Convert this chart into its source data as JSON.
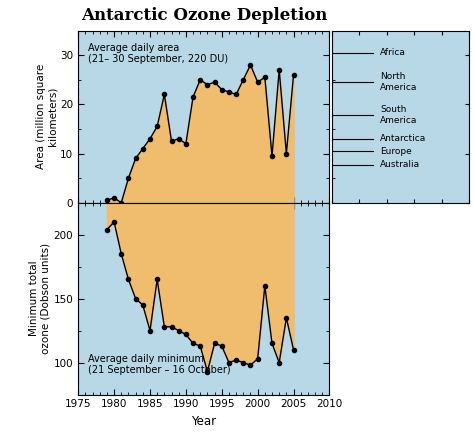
{
  "title": "Antarctic Ozone Depletion",
  "title_fontsize": 12,
  "background_color": "#B8D8E8",
  "fill_color": "#F0BC6E",
  "line_color": "#000000",
  "area_years": [
    1979,
    1980,
    1981,
    1982,
    1983,
    1984,
    1985,
    1986,
    1987,
    1988,
    1989,
    1990,
    1991,
    1992,
    1993,
    1994,
    1995,
    1996,
    1997,
    1998,
    1999,
    2000,
    2001,
    2002,
    2003,
    2004,
    2005
  ],
  "area_values": [
    0.5,
    1.0,
    0.0,
    5.0,
    9.0,
    11.0,
    13.0,
    15.5,
    22.0,
    12.5,
    13.0,
    12.0,
    21.5,
    25.0,
    24.0,
    24.5,
    23.0,
    22.5,
    22.0,
    25.0,
    28.0,
    24.5,
    25.5,
    9.5,
    27.0,
    10.0,
    26.0
  ],
  "ozone_years": [
    1979,
    1980,
    1981,
    1982,
    1983,
    1984,
    1985,
    1986,
    1987,
    1988,
    1989,
    1990,
    1991,
    1992,
    1993,
    1994,
    1995,
    1996,
    1997,
    1998,
    1999,
    2000,
    2001,
    2002,
    2003,
    2004,
    2005
  ],
  "ozone_values": [
    204,
    210,
    185,
    165,
    150,
    145,
    125,
    165,
    128,
    128,
    125,
    122,
    115,
    113,
    93,
    115,
    113,
    100,
    102,
    100,
    98,
    103,
    160,
    115,
    100,
    135,
    110
  ],
  "area_ylabel": "Area (million square\nkilometers)",
  "ozone_ylabel": "Minimum total\nozone (Dobson units)",
  "xlabel": "Year",
  "area_ylim": [
    0,
    35
  ],
  "area_yticks": [
    0,
    10,
    20,
    30
  ],
  "ozone_ylim": [
    75,
    225
  ],
  "ozone_yticks": [
    100,
    150,
    200
  ],
  "xlim": [
    1975,
    2010
  ],
  "xticks": [
    1975,
    1980,
    1985,
    1990,
    1995,
    2000,
    2005,
    2010
  ],
  "area_annotation": "Average daily area\n(21– 30 September, 220 DU)",
  "ozone_annotation": "Average daily minimum\n(21 September – 16 October)",
  "reference_lines": [
    {
      "label": "Africa",
      "y": 30.5
    },
    {
      "label": "North\nAmerica",
      "y": 24.5
    },
    {
      "label": "South\nAmerica",
      "y": 17.8
    },
    {
      "label": "Antarctica",
      "y": 13.0
    },
    {
      "label": "Europe",
      "y": 10.5
    },
    {
      "label": "Australia",
      "y": 7.7
    }
  ],
  "marker_size": 3.0,
  "line_width": 1.0
}
